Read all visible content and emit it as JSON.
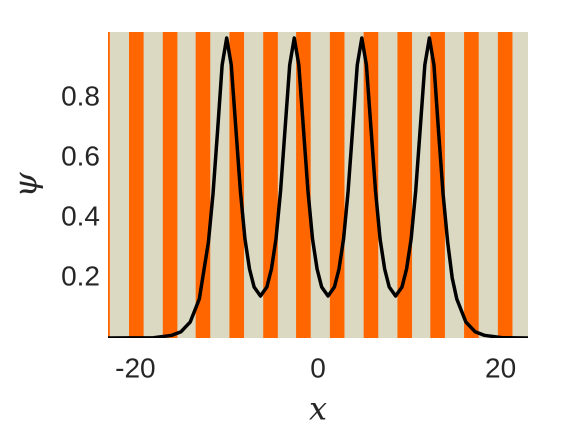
{
  "chart_data": {
    "type": "line",
    "x_label": "x",
    "y_label": "ψ",
    "xlim": [
      -23,
      23
    ],
    "ylim": [
      0,
      1.02
    ],
    "xticks": [
      -20,
      0,
      20
    ],
    "yticks": [
      0.2,
      0.4,
      0.6,
      0.8
    ],
    "band_color": "#ff6600",
    "background_color": "#dcd9c3",
    "bands": [
      [
        -24.4,
        -22.8
      ],
      [
        -20.7,
        -19.1
      ],
      [
        -17.0,
        -15.4
      ],
      [
        -13.4,
        -11.8
      ],
      [
        -9.7,
        -8.1
      ],
      [
        -6.0,
        -4.4
      ],
      [
        -2.4,
        -0.8
      ],
      [
        1.3,
        2.9
      ],
      [
        5.0,
        6.6
      ],
      [
        8.7,
        10.3
      ],
      [
        12.3,
        13.9
      ],
      [
        16.0,
        17.6
      ],
      [
        19.7,
        21.3
      ]
    ],
    "series": [
      {
        "color": "#000000",
        "x": [
          -23,
          -18,
          -16,
          -15,
          -14,
          -13,
          -12,
          -11.5,
          -11,
          -10.5,
          -10,
          -9.5,
          -9,
          -8.5,
          -8,
          -7.5,
          -7,
          -6.3,
          -5.6,
          -5.1,
          -4.6,
          -4.1,
          -3.6,
          -3.1,
          -2.6,
          -2.1,
          -1.6,
          -1.1,
          -0.6,
          -0.1,
          0.4,
          1.1,
          1.8,
          2.3,
          2.8,
          3.3,
          3.8,
          4.3,
          4.8,
          5.3,
          5.8,
          6.3,
          6.8,
          7.3,
          7.8,
          8.5,
          9.2,
          9.7,
          10.2,
          10.7,
          11.2,
          11.7,
          12.2,
          12.7,
          13.2,
          13.7,
          14.2,
          14.7,
          15.2,
          16.2,
          17.2,
          18.2,
          20.2,
          23
        ],
        "values": [
          0,
          0.001,
          0.009,
          0.021,
          0.053,
          0.13,
          0.32,
          0.48,
          0.69,
          0.91,
          1.0,
          0.91,
          0.7,
          0.49,
          0.33,
          0.23,
          0.17,
          0.14,
          0.17,
          0.23,
          0.33,
          0.49,
          0.7,
          0.91,
          1.0,
          0.91,
          0.7,
          0.49,
          0.33,
          0.23,
          0.17,
          0.14,
          0.17,
          0.23,
          0.33,
          0.49,
          0.7,
          0.91,
          1.0,
          0.91,
          0.7,
          0.49,
          0.33,
          0.23,
          0.17,
          0.14,
          0.17,
          0.23,
          0.33,
          0.49,
          0.7,
          0.91,
          1.0,
          0.91,
          0.69,
          0.48,
          0.32,
          0.2,
          0.13,
          0.053,
          0.021,
          0.009,
          0.001,
          0
        ]
      }
    ]
  }
}
